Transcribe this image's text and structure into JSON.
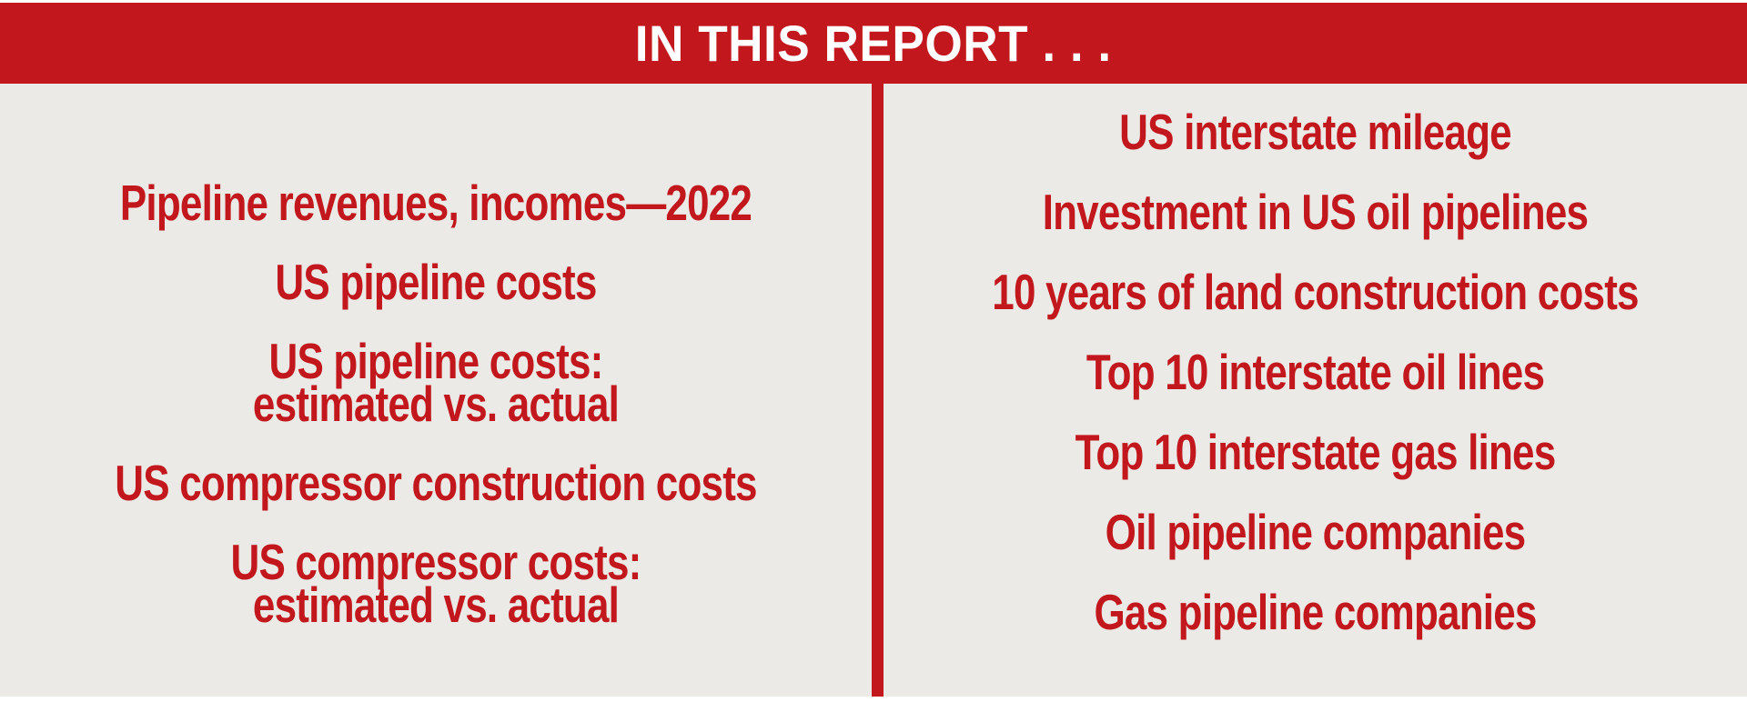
{
  "header": {
    "title": "IN THIS REPORT . . ."
  },
  "toc": {
    "left": [
      {
        "lines": [
          "Pipeline revenues, incomes—2022"
        ]
      },
      {
        "lines": [
          "US pipeline costs"
        ]
      },
      {
        "lines": [
          "US pipeline costs:",
          "estimated vs. actual"
        ]
      },
      {
        "lines": [
          "US compressor construction costs"
        ]
      },
      {
        "lines": [
          "US compressor costs:",
          "estimated vs. actual"
        ]
      }
    ],
    "right": [
      {
        "lines": [
          "US interstate mileage"
        ]
      },
      {
        "lines": [
          "Investment in US oil pipelines"
        ]
      },
      {
        "lines": [
          "10 years of land construction costs"
        ]
      },
      {
        "lines": [
          "Top 10 interstate oil lines"
        ]
      },
      {
        "lines": [
          "Top 10 interstate gas lines"
        ]
      },
      {
        "lines": [
          "Oil pipeline companies"
        ]
      },
      {
        "lines": [
          "Gas pipeline companies"
        ]
      }
    ]
  },
  "colors": {
    "accent_red": "#c2181d",
    "panel_background": "#ebeae6",
    "header_text": "#ffffff"
  }
}
